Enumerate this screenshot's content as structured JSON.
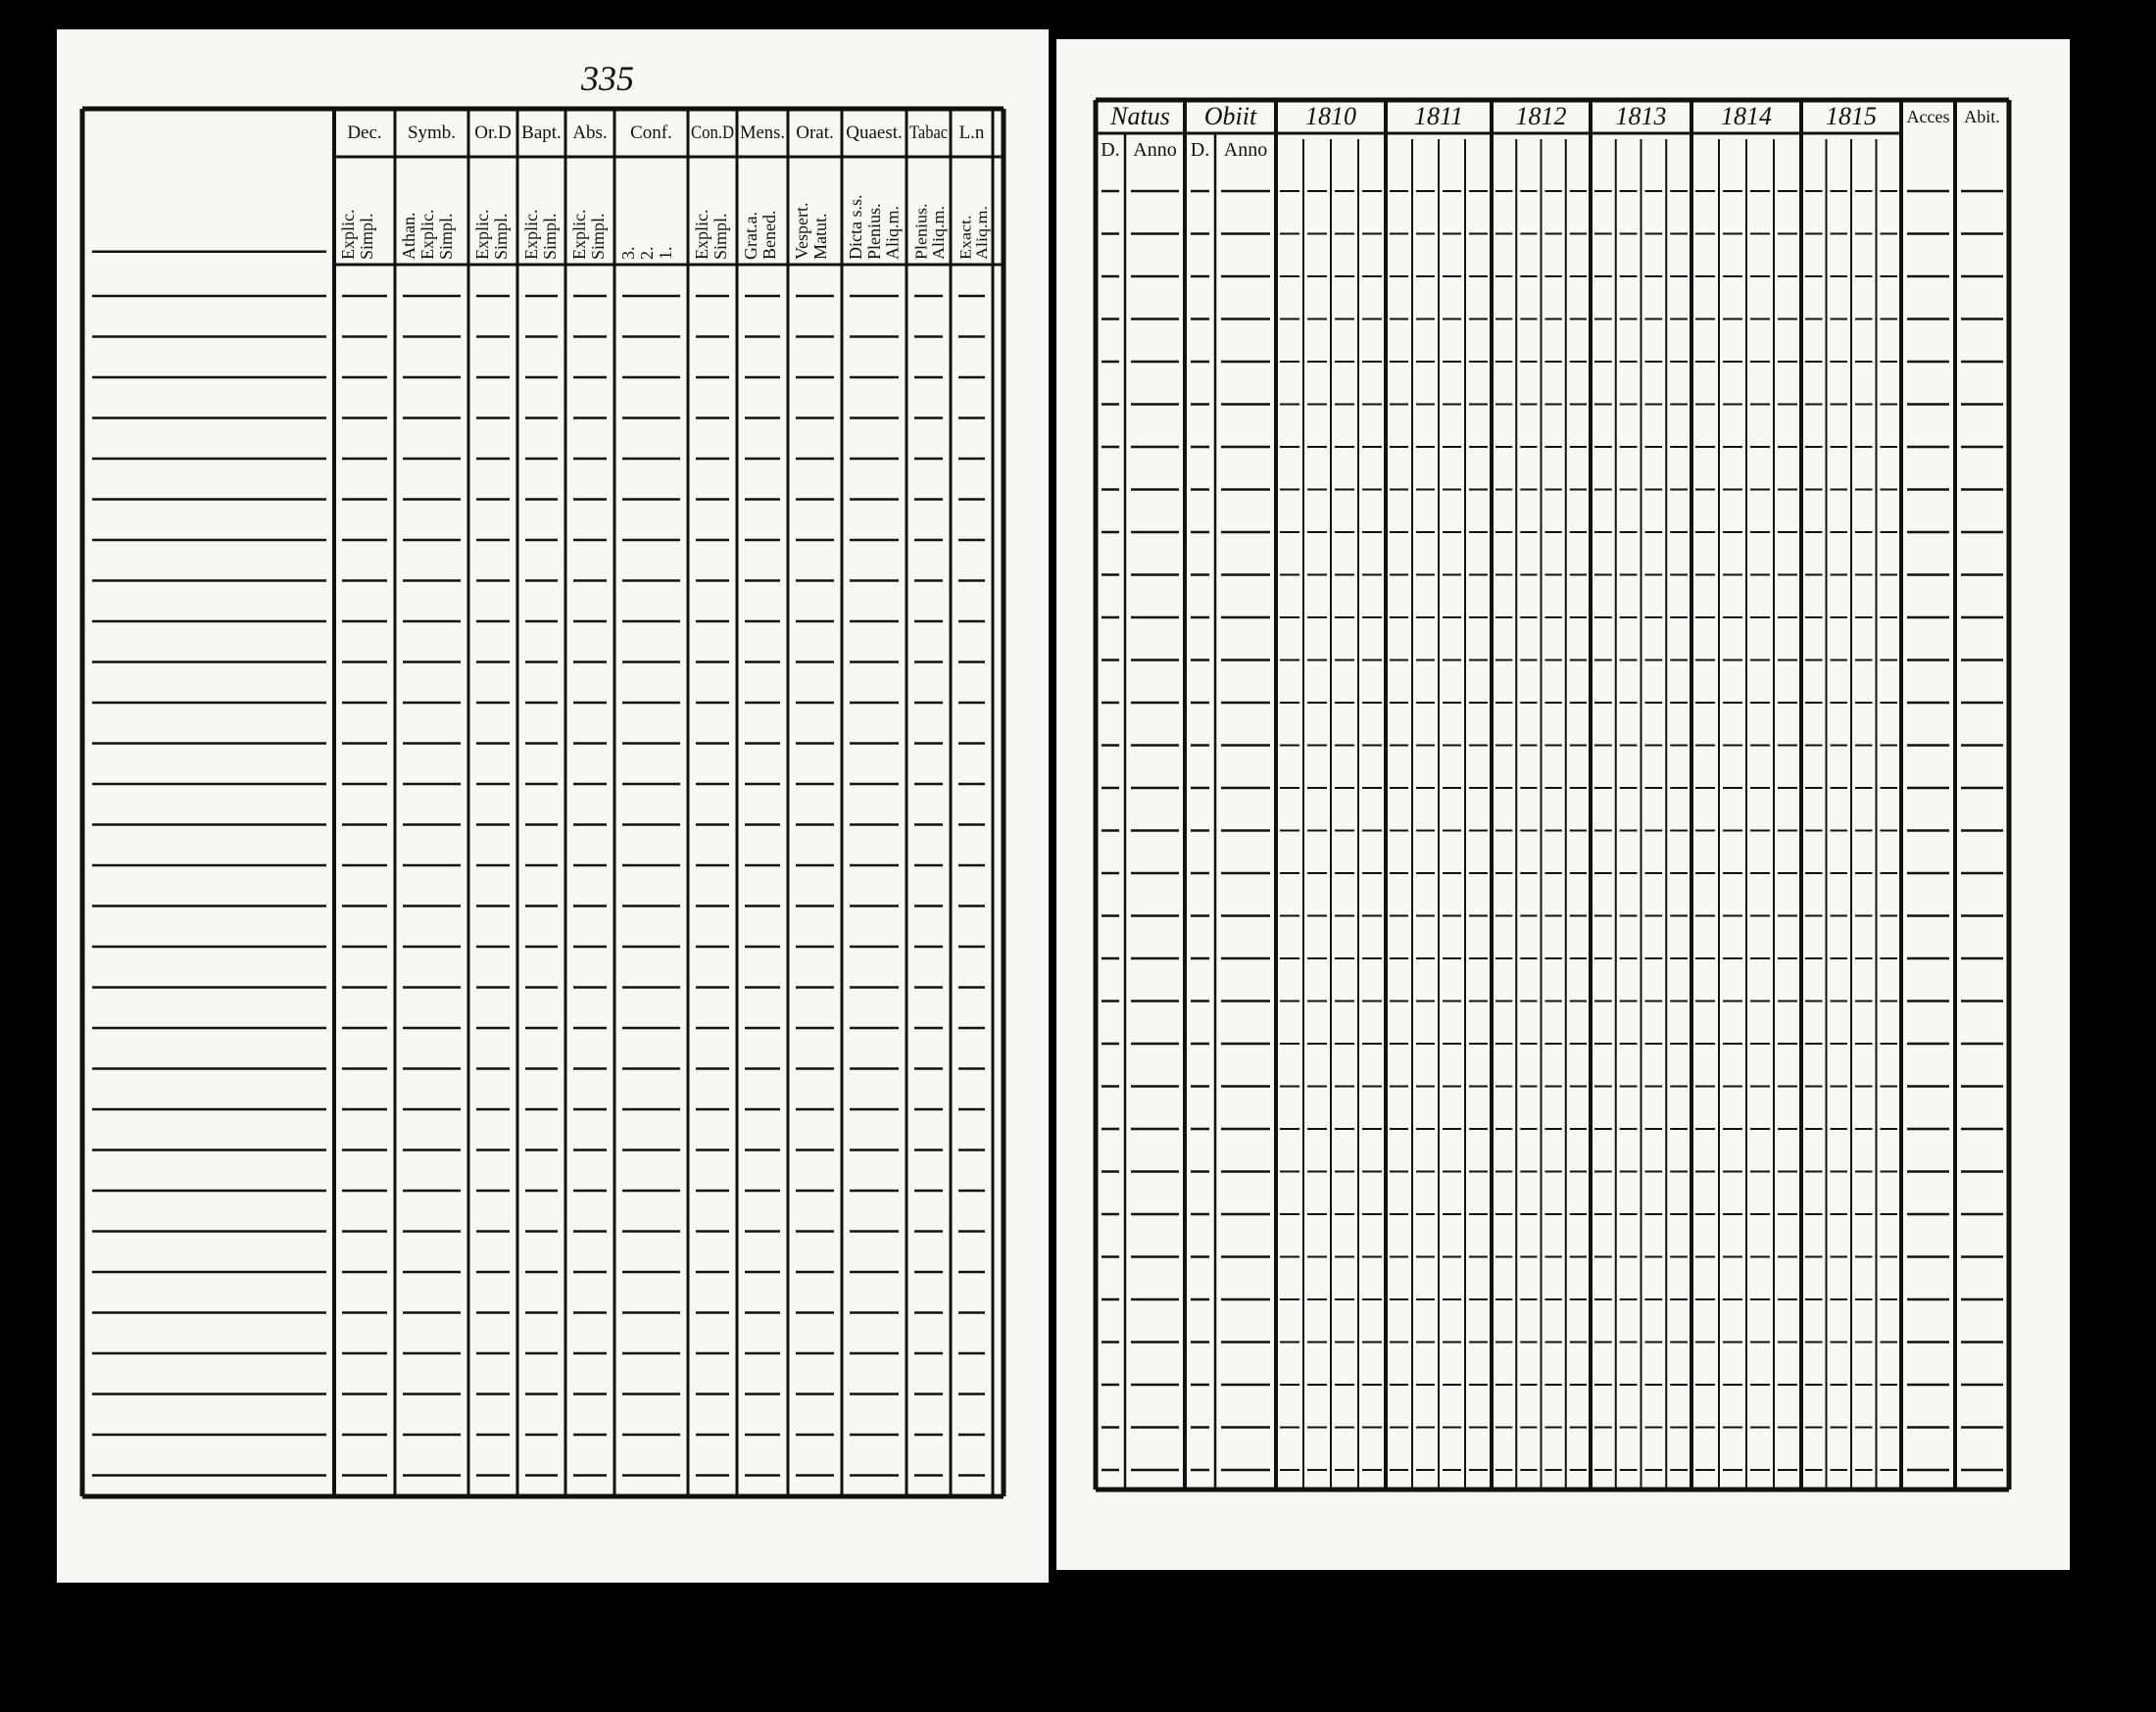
{
  "left_page": {
    "page_number": "335",
    "columns": [
      {
        "header": "Dec.",
        "sub": "Explic.\nSimpl."
      },
      {
        "header": "Symb.",
        "sub": "Athan.\nExplic.\nSimpl."
      },
      {
        "header": "Or.D",
        "sub": "Explic.\nSimpl."
      },
      {
        "header": "Bapt.",
        "sub": "Explic.\nSimpl."
      },
      {
        "header": "Abs.",
        "sub": "Explic.\nSimpl."
      },
      {
        "header": "Conf.",
        "sub": "3.\n2.\n1."
      },
      {
        "header": "Con.D",
        "sub": "Explic.\nSimpl."
      },
      {
        "header": "Mens.",
        "sub": "Grat.a.\nBened."
      },
      {
        "header": "Orat.",
        "sub": "Vespert.\nMatut."
      },
      {
        "header": "Quaest.",
        "sub": "Dicta s.s.\nPlenius.\nAliq.m."
      },
      {
        "header": "Tabac",
        "sub": "Plenius.\nAliq.m."
      },
      {
        "header": "L.n",
        "sub": "Exact.\nAliq.m."
      }
    ]
  },
  "right_page": {
    "natus": {
      "header": "Natus",
      "sub": [
        "D.",
        "Anno"
      ]
    },
    "obiit": {
      "header": "Obiit",
      "sub": [
        "D.",
        "Anno"
      ]
    },
    "years": [
      "1810",
      "1811",
      "1812",
      "1813",
      "1814",
      "1815"
    ],
    "acces": "Acces",
    "abit": "Abit."
  }
}
